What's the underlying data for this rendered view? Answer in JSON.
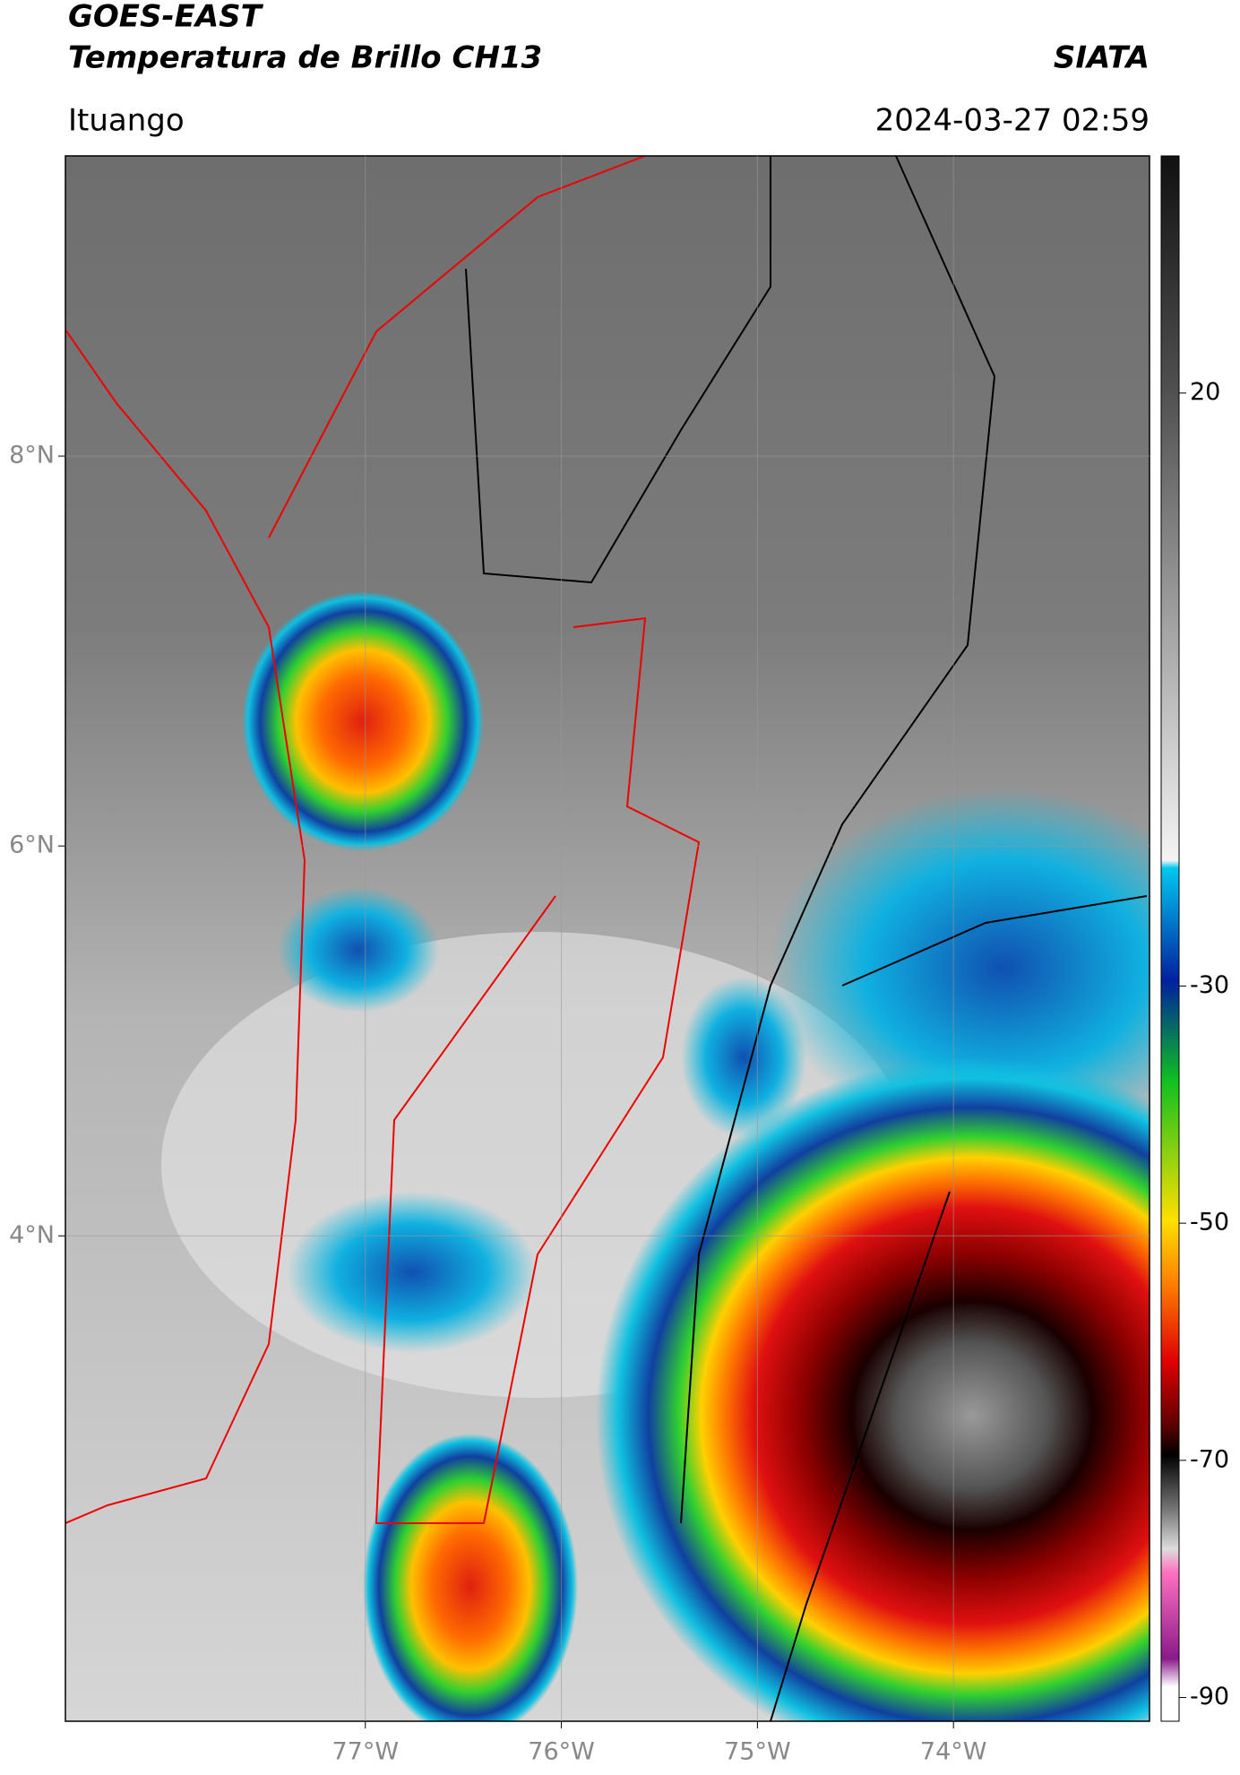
{
  "header": {
    "title": "GOES-EAST",
    "subtitle": "Temperatura de Brillo CH13",
    "organization": "SIATA",
    "location": "Ituango",
    "datetime": "2024-03-27 02:59"
  },
  "map": {
    "xlim": [
      -78.53,
      -73.0
    ],
    "ylim": [
      1.51,
      9.54
    ],
    "xticks": [
      {
        "value": -77,
        "label": "77°W"
      },
      {
        "value": -76,
        "label": "76°W"
      },
      {
        "value": -75,
        "label": "75°W"
      },
      {
        "value": -74,
        "label": "74°W"
      }
    ],
    "yticks": [
      {
        "value": 8,
        "label": "8°N"
      },
      {
        "value": 6,
        "label": "6°N"
      },
      {
        "value": 4,
        "label": "4°N"
      }
    ],
    "grid": true
  },
  "colorbar": {
    "lim": [
      -92,
      40
    ],
    "ticks": [
      20,
      -30,
      -50,
      -70,
      -90
    ]
  }
}
